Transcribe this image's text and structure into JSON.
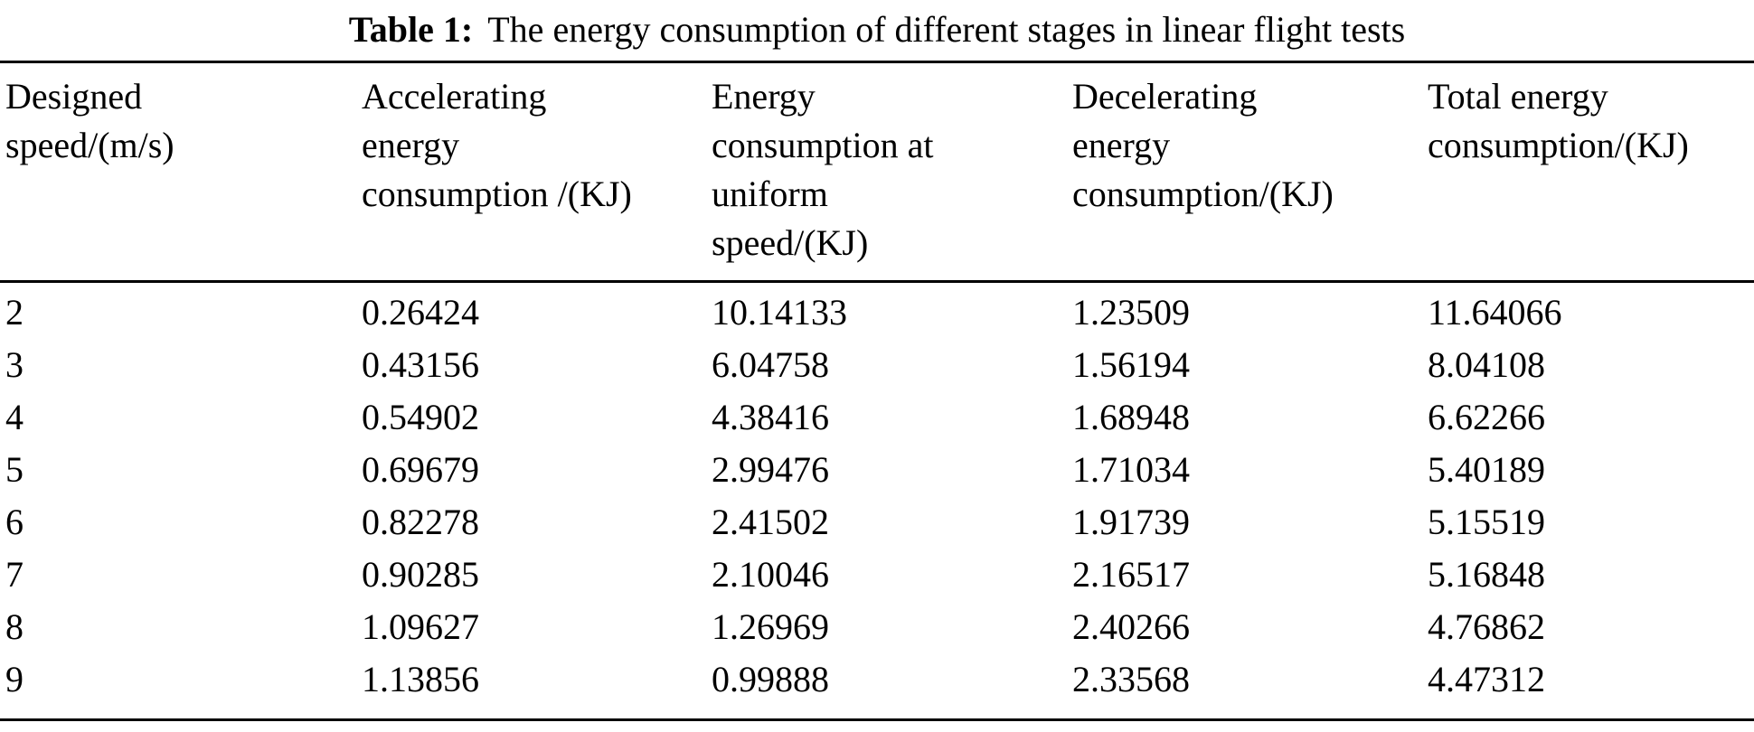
{
  "caption": {
    "label": "Table 1:",
    "text": "The energy consumption of different stages in linear flight tests"
  },
  "table": {
    "headers": [
      "Designed\nspeed/(m/s)",
      "Accelerating\nenergy\nconsumption /(KJ)",
      "Energy\nconsumption at\nuniform\nspeed/(KJ)",
      "Decelerating\nenergy\nconsumption/(KJ)",
      "Total energy\nconsumption/(KJ)"
    ],
    "rows": [
      [
        "2",
        "0.26424",
        "10.14133",
        "1.23509",
        "11.64066"
      ],
      [
        "3",
        "0.43156",
        "6.04758",
        "1.56194",
        "8.04108"
      ],
      [
        "4",
        "0.54902",
        "4.38416",
        "1.68948",
        "6.62266"
      ],
      [
        "5",
        "0.69679",
        "2.99476",
        "1.71034",
        "5.40189"
      ],
      [
        "6",
        "0.82278",
        "2.41502",
        "1.91739",
        "5.15519"
      ],
      [
        "7",
        "0.90285",
        "2.10046",
        "2.16517",
        "5.16848"
      ],
      [
        "8",
        "1.09627",
        "1.26969",
        "2.40266",
        "4.76862"
      ],
      [
        "9",
        "1.13856",
        "0.99888",
        "2.33568",
        "4.47312"
      ]
    ]
  },
  "chart_data": {
    "type": "table",
    "title": "Table 1: The energy consumption of different stages in linear flight tests",
    "columns": [
      "Designed speed/(m/s)",
      "Accelerating energy consumption /(KJ)",
      "Energy consumption at uniform speed/(KJ)",
      "Decelerating energy consumption/(KJ)",
      "Total energy consumption/(KJ)"
    ],
    "rows": [
      [
        2,
        0.26424,
        10.14133,
        1.23509,
        11.64066
      ],
      [
        3,
        0.43156,
        6.04758,
        1.56194,
        8.04108
      ],
      [
        4,
        0.54902,
        4.38416,
        1.68948,
        6.62266
      ],
      [
        5,
        0.69679,
        2.99476,
        1.71034,
        5.40189
      ],
      [
        6,
        0.82278,
        2.41502,
        1.91739,
        5.15519
      ],
      [
        7,
        0.90285,
        2.10046,
        2.16517,
        5.16848
      ],
      [
        8,
        1.09627,
        1.26969,
        2.40266,
        4.76862
      ],
      [
        9,
        1.13856,
        0.99888,
        2.33568,
        4.47312
      ]
    ]
  }
}
